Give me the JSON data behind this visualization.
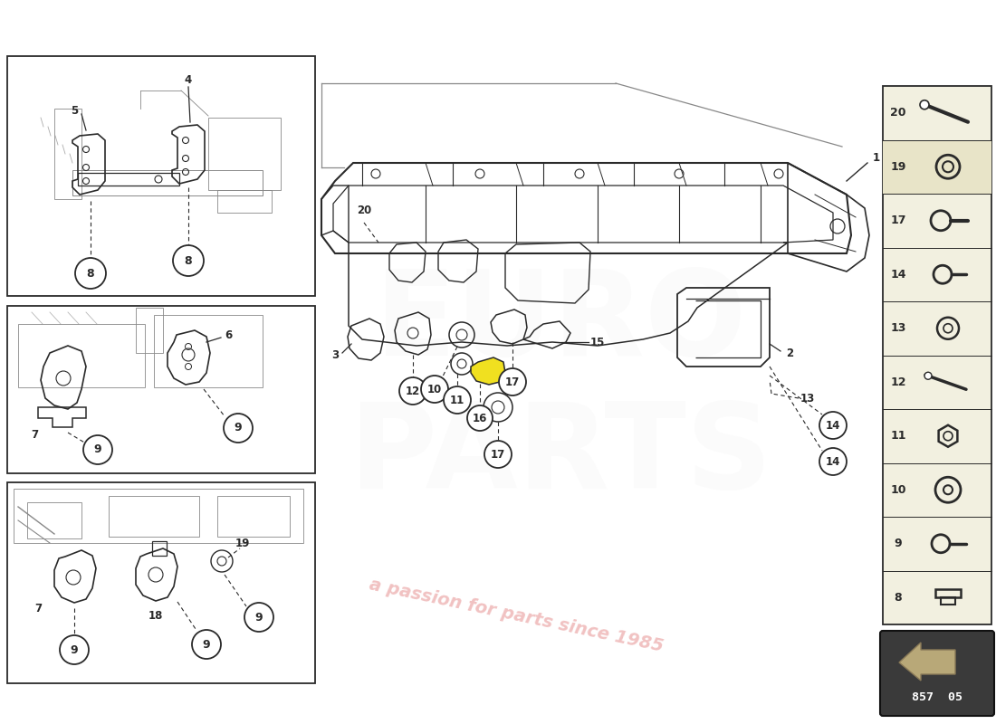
{
  "background_color": "#ffffff",
  "line_color": "#2a2a2a",
  "light_line_color": "#888888",
  "circle_bg": "#ffffff",
  "circle_edge": "#2a2a2a",
  "right_panel_bg": "#f2f0e0",
  "right_panel_highlight": "#e8e4c8",
  "right_panel_border": "#2a2a2a",
  "arrow_box_bg": "#3a3a3a",
  "panel_border_color": "#2a2a2a",
  "watermark_text": "a passion for parts since 1985",
  "watermark_color": "#cc2222",
  "watermark_alpha": 0.28,
  "diagram_number": "857 05",
  "right_panel_items": [
    {
      "num": 20,
      "type": "screw_diag"
    },
    {
      "num": 19,
      "type": "washer_highlight"
    },
    {
      "num": 17,
      "type": "bolt_hex_head"
    },
    {
      "num": 14,
      "type": "bolt_hex2"
    },
    {
      "num": 13,
      "type": "nut_small"
    },
    {
      "num": 12,
      "type": "screw_diag2"
    },
    {
      "num": 11,
      "type": "nut_hex"
    },
    {
      "num": 10,
      "type": "washer_flat"
    },
    {
      "num": 9,
      "type": "bolt_round_head"
    },
    {
      "num": 8,
      "type": "bolt_cap"
    }
  ]
}
